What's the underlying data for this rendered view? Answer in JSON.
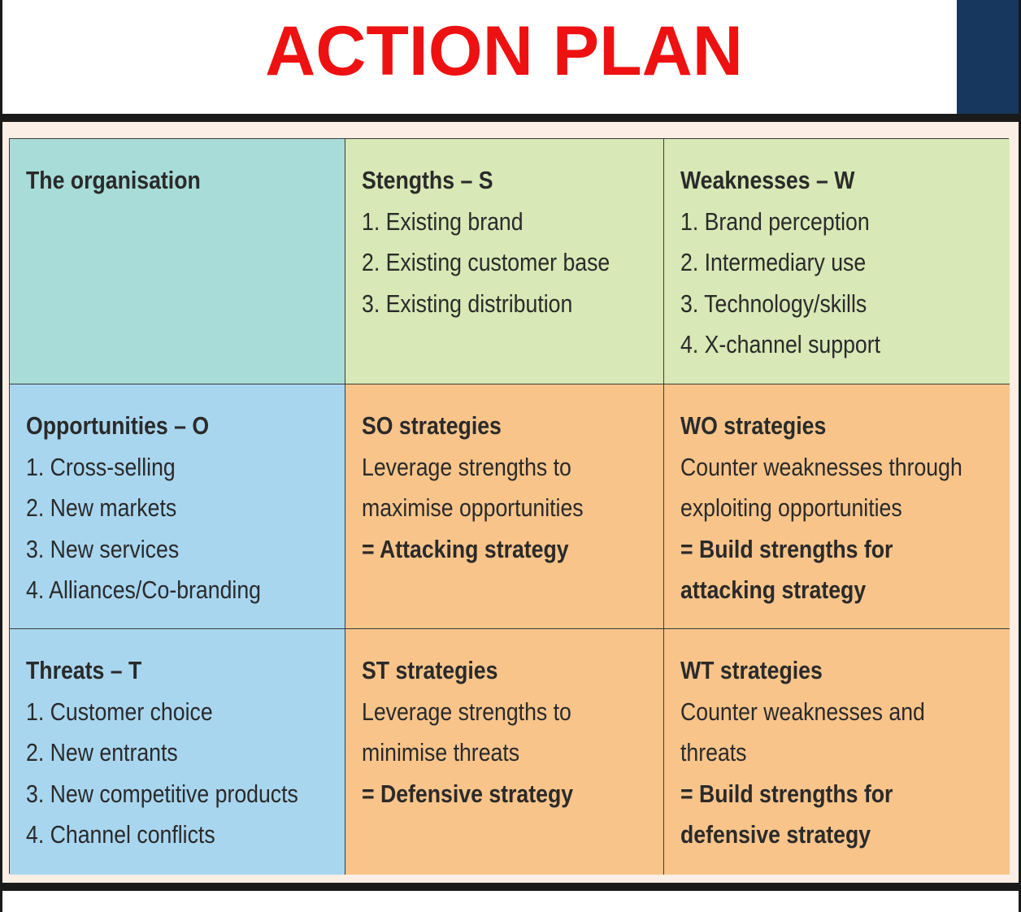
{
  "title": "ACTION PLAN",
  "colors": {
    "title": "#ee1111",
    "accent_bar": "#17375e",
    "organisation_cell": "#a8dcd8",
    "strengths_weaknesses_cells": "#d8e8b6",
    "opportunities_threats_cells": "#a9d6ef",
    "strategy_cells": "#f8c48a"
  },
  "matrix": {
    "organisation": {
      "heading": "The organisation"
    },
    "strengths": {
      "heading": "Stengths – S",
      "items": [
        "1. Existing brand",
        "2. Existing customer base",
        "3. Existing distribution"
      ]
    },
    "weaknesses": {
      "heading": "Weaknesses – W",
      "items": [
        "1. Brand perception",
        "2. Intermediary use",
        "3. Technology/skills",
        "4. X-channel support"
      ]
    },
    "opportunities": {
      "heading": "Opportunities – O",
      "items": [
        "1. Cross-selling",
        "2. New markets",
        "3. New services",
        "4. Alliances/Co-branding"
      ]
    },
    "threats": {
      "heading": "Threats – T",
      "items": [
        "1. Customer choice",
        "2. New entrants",
        "3. New competitive products",
        "4. Channel conflicts"
      ]
    },
    "so": {
      "heading": "SO strategies",
      "lines": [
        "Leverage strengths to",
        "maximise opportunities"
      ],
      "result": [
        "= Attacking strategy"
      ]
    },
    "wo": {
      "heading": "WO strategies",
      "lines": [
        "Counter weaknesses through",
        "exploiting opportunities"
      ],
      "result": [
        "= Build strengths for",
        "attacking strategy"
      ]
    },
    "st": {
      "heading": "ST strategies",
      "lines": [
        "Leverage strengths to",
        "minimise threats"
      ],
      "result": [
        "= Defensive strategy"
      ]
    },
    "wt": {
      "heading": "WT strategies",
      "lines": [
        "Counter weaknesses and",
        "threats"
      ],
      "result": [
        "= Build strengths for",
        "defensive strategy"
      ]
    }
  }
}
